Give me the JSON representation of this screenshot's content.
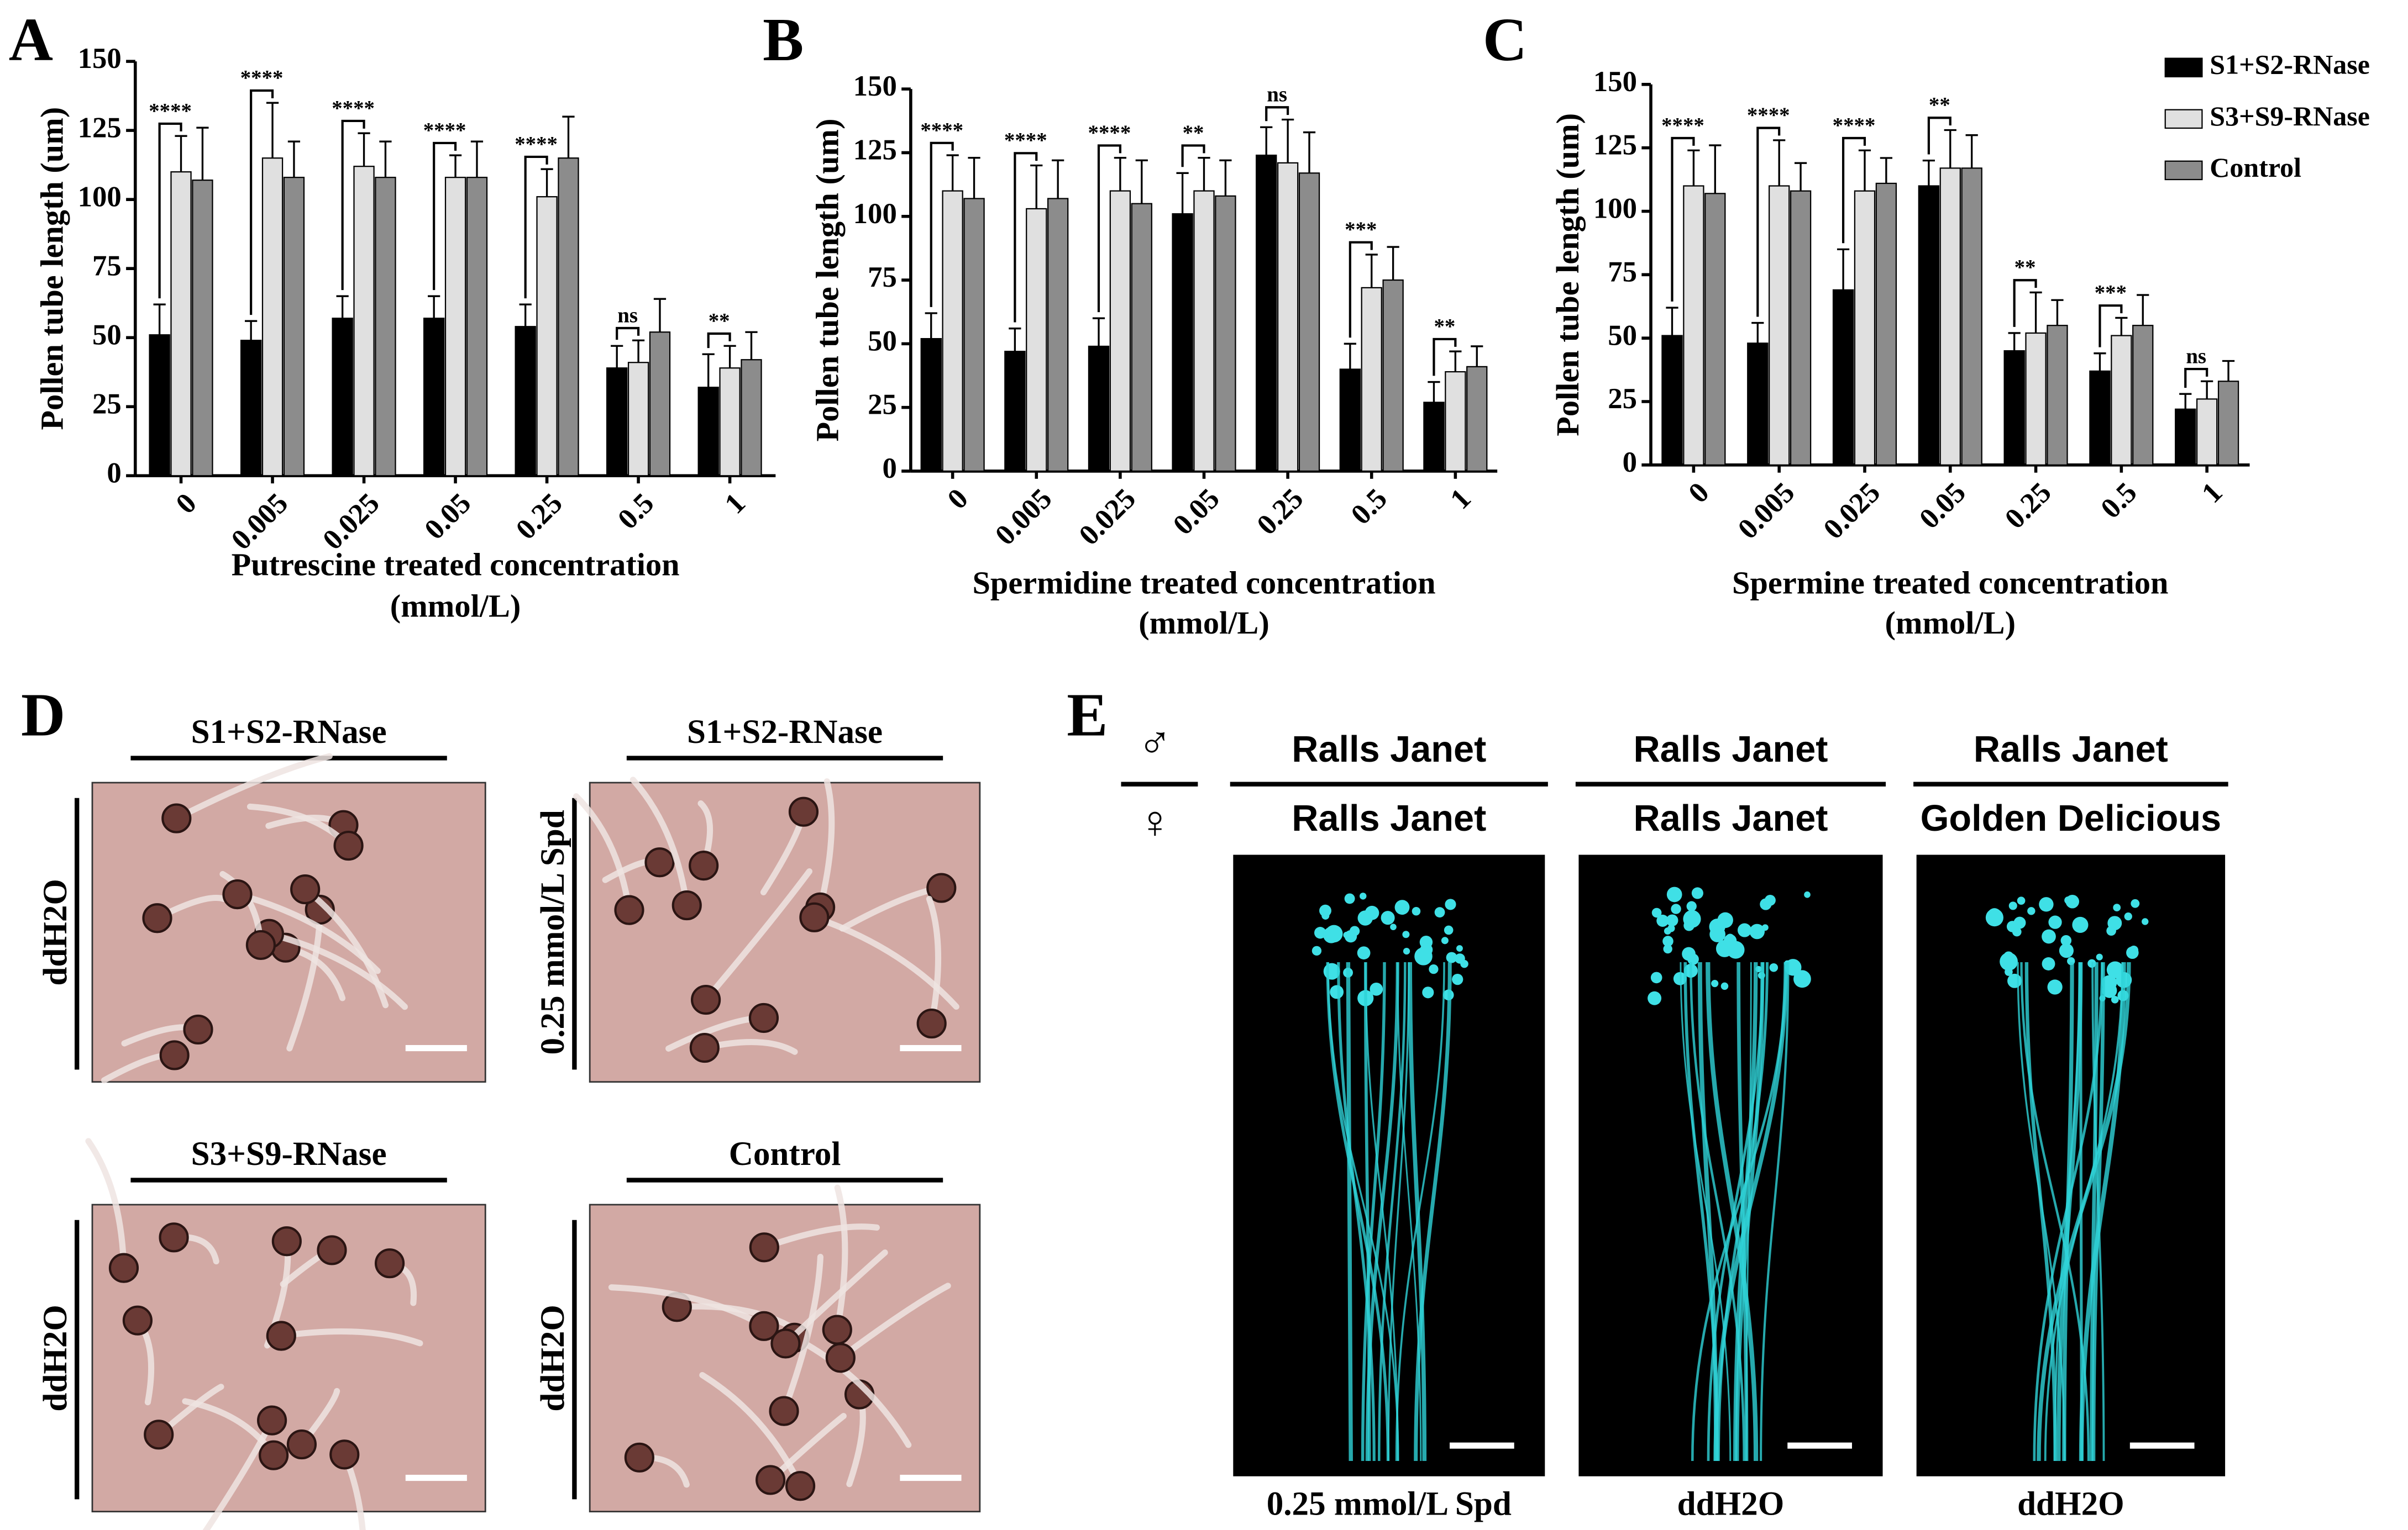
{
  "chart_data": [
    {
      "type": "bar",
      "panel": "A",
      "y_label": "Pollen tube length (um)",
      "x_label": [
        "Putrescine treated concentration",
        "(mmol/L)"
      ],
      "categories": [
        "0",
        "0.005",
        "0.025",
        "0.05",
        "0.25",
        "0.5",
        "1"
      ],
      "ylim": [
        0,
        150
      ],
      "yticks": [
        0,
        25,
        50,
        75,
        100,
        125,
        150
      ],
      "series": [
        {
          "color": "#000000",
          "values": [
            51,
            49,
            57,
            57,
            54,
            39,
            32
          ],
          "errors": [
            11,
            7,
            8,
            8,
            8,
            8,
            12
          ]
        },
        {
          "color": "#e0e0e0",
          "values": [
            110,
            115,
            112,
            108,
            101,
            41,
            39
          ],
          "errors": [
            13,
            20,
            12,
            8,
            10,
            8,
            8
          ]
        },
        {
          "color": "#8c8c8c",
          "values": [
            107,
            108,
            108,
            108,
            115,
            52,
            42
          ],
          "errors": [
            19,
            13,
            13,
            13,
            15,
            12,
            10
          ]
        }
      ],
      "annotations": [
        "****",
        "****",
        "****",
        "****",
        "****",
        "ns",
        "**"
      ]
    },
    {
      "type": "bar",
      "panel": "B",
      "y_label": "Pollen tube length (um)",
      "x_label": [
        "Spermidine treated concentration",
        "(mmol/L)"
      ],
      "categories": [
        "0",
        "0.005",
        "0.025",
        "0.05",
        "0.25",
        "0.5",
        "1"
      ],
      "ylim": [
        0,
        150
      ],
      "yticks": [
        0,
        25,
        50,
        75,
        100,
        125,
        150
      ],
      "series": [
        {
          "color": "#000000",
          "values": [
            52,
            47,
            49,
            101,
            124,
            40,
            27
          ],
          "errors": [
            10,
            9,
            11,
            16,
            11,
            10,
            8
          ]
        },
        {
          "color": "#e0e0e0",
          "values": [
            110,
            103,
            110,
            110,
            121,
            72,
            39
          ],
          "errors": [
            14,
            17,
            13,
            13,
            17,
            13,
            8
          ]
        },
        {
          "color": "#8c8c8c",
          "values": [
            107,
            107,
            105,
            108,
            117,
            75,
            41
          ],
          "errors": [
            16,
            15,
            17,
            14,
            16,
            13,
            8
          ]
        }
      ],
      "annotations": [
        "****",
        "****",
        "****",
        "**",
        "ns",
        "***",
        "**"
      ]
    },
    {
      "type": "bar",
      "panel": "C",
      "y_label": "Pollen tube length (um)",
      "x_label": [
        "Spermine treated concentration",
        "(mmol/L)"
      ],
      "categories": [
        "0",
        "0.005",
        "0.025",
        "0.05",
        "0.25",
        "0.5",
        "1"
      ],
      "ylim": [
        0,
        150
      ],
      "yticks": [
        0,
        25,
        50,
        75,
        100,
        125,
        150
      ],
      "legend": "upper right",
      "series": [
        {
          "name": "S1+S2-RNase",
          "color": "#000000",
          "values": [
            51,
            48,
            69,
            110,
            45,
            37,
            22
          ],
          "errors": [
            11,
            8,
            16,
            10,
            7,
            7,
            6
          ]
        },
        {
          "name": "S3+S9-RNase",
          "color": "#e0e0e0",
          "values": [
            110,
            110,
            108,
            117,
            52,
            51,
            26
          ],
          "errors": [
            14,
            18,
            16,
            15,
            16,
            7,
            7
          ]
        },
        {
          "name": "Control",
          "color": "#8c8c8c",
          "values": [
            107,
            108,
            111,
            117,
            55,
            55,
            33
          ],
          "errors": [
            19,
            11,
            10,
            13,
            10,
            12,
            8
          ]
        }
      ],
      "annotations": [
        "****",
        "****",
        "****",
        "**",
        "**",
        "***",
        "ns"
      ]
    }
  ],
  "panel_d": {
    "label": "D",
    "images": [
      {
        "title": "S1+S2-RNase",
        "side": "ddH2O"
      },
      {
        "title": "S1+S2-RNase",
        "side": "0.25 mmol/L Spd"
      },
      {
        "title": "S3+S9-RNase",
        "side": "ddH2O"
      },
      {
        "title": "Control",
        "side": "ddH2O"
      }
    ]
  },
  "panel_e": {
    "label": "E",
    "male_symbol": "♂",
    "female_symbol": "♀",
    "images": [
      {
        "male": "Ralls Janet",
        "female": "Ralls Janet",
        "treatment": "0.25 mmol/L Spd"
      },
      {
        "male": "Ralls Janet",
        "female": "Ralls Janet",
        "treatment": "ddH2O"
      },
      {
        "male": "Ralls Janet",
        "female": "Golden Delicious",
        "treatment": "ddH2O"
      }
    ]
  }
}
